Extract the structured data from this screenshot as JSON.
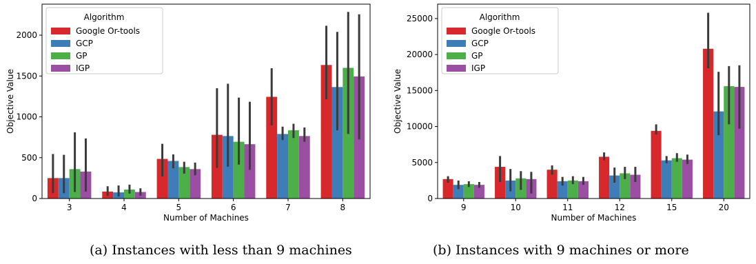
{
  "colors": {
    "Google Or-tools": "#d7292b",
    "GCP": "#3f7db9",
    "GP": "#4caf4a",
    "IGP": "#9a4fa3",
    "error_bar": "#3b3b3b"
  },
  "chart_data": [
    {
      "type": "bar",
      "xlabel": "Number of Machines",
      "ylabel": "Objective Value",
      "legend_title": "Algorithm",
      "legend_position": "top-left",
      "grid": false,
      "categories": [
        "3",
        "4",
        "5",
        "6",
        "7",
        "8"
      ],
      "ylim": [
        0,
        2380
      ],
      "yticks": [
        0,
        500,
        1000,
        1500,
        2000
      ],
      "series": [
        {
          "name": "Google Or-tools",
          "values": [
            250,
            85,
            485,
            780,
            1245,
            1635
          ],
          "err_low": [
            65,
            30,
            270,
            375,
            895,
            1215
          ],
          "err_high": [
            545,
            150,
            670,
            1350,
            1595,
            2115
          ]
        },
        {
          "name": "GCP",
          "values": [
            250,
            75,
            460,
            765,
            790,
            1365
          ],
          "err_low": [
            65,
            25,
            370,
            390,
            715,
            835
          ],
          "err_high": [
            535,
            160,
            540,
            1405,
            880,
            2040
          ]
        },
        {
          "name": "GP",
          "values": [
            360,
            110,
            385,
            695,
            835,
            1600
          ],
          "err_low": [
            80,
            60,
            305,
            415,
            740,
            790
          ],
          "err_high": [
            810,
            170,
            450,
            1235,
            915,
            2285
          ]
        },
        {
          "name": "IGP",
          "values": [
            330,
            80,
            360,
            665,
            765,
            1495
          ],
          "err_low": [
            85,
            35,
            285,
            350,
            695,
            725
          ],
          "err_high": [
            735,
            125,
            440,
            1185,
            870,
            2255
          ]
        }
      ]
    },
    {
      "type": "bar",
      "xlabel": "Number of Machines",
      "ylabel": "Objective Value",
      "legend_title": "Algorithm",
      "legend_position": "top-left",
      "grid": false,
      "categories": [
        "9",
        "10",
        "11",
        "12",
        "15",
        "20"
      ],
      "ylim": [
        0,
        27000
      ],
      "yticks": [
        0,
        5000,
        10000,
        15000,
        20000,
        25000
      ],
      "series": [
        {
          "name": "Google Or-tools",
          "values": [
            2700,
            4400,
            4000,
            5800,
            9400,
            20800
          ],
          "err_low": [
            2200,
            2300,
            3300,
            5300,
            8900,
            18100
          ],
          "err_high": [
            3100,
            5900,
            4600,
            6400,
            10300,
            25800
          ]
        },
        {
          "name": "GCP",
          "values": [
            1900,
            2500,
            2400,
            3200,
            5300,
            12100
          ],
          "err_low": [
            1300,
            1000,
            1800,
            2200,
            4900,
            8800
          ],
          "err_high": [
            2500,
            4100,
            3000,
            4300,
            5900,
            17600
          ]
        },
        {
          "name": "GP",
          "values": [
            2000,
            2800,
            2500,
            3500,
            5600,
            15600
          ],
          "err_low": [
            1600,
            1200,
            2000,
            2700,
            5100,
            10300
          ],
          "err_high": [
            2400,
            3800,
            3100,
            4400,
            6300,
            18400
          ]
        },
        {
          "name": "IGP",
          "values": [
            1900,
            2700,
            2400,
            3300,
            5400,
            15500
          ],
          "err_low": [
            1500,
            700,
            1900,
            2300,
            4800,
            9700
          ],
          "err_high": [
            2300,
            3700,
            3000,
            4400,
            6100,
            18500
          ]
        }
      ]
    }
  ],
  "captions": [
    "(a) Instances with less than 9 machines",
    "(b) Instances with 9 machines or more"
  ]
}
